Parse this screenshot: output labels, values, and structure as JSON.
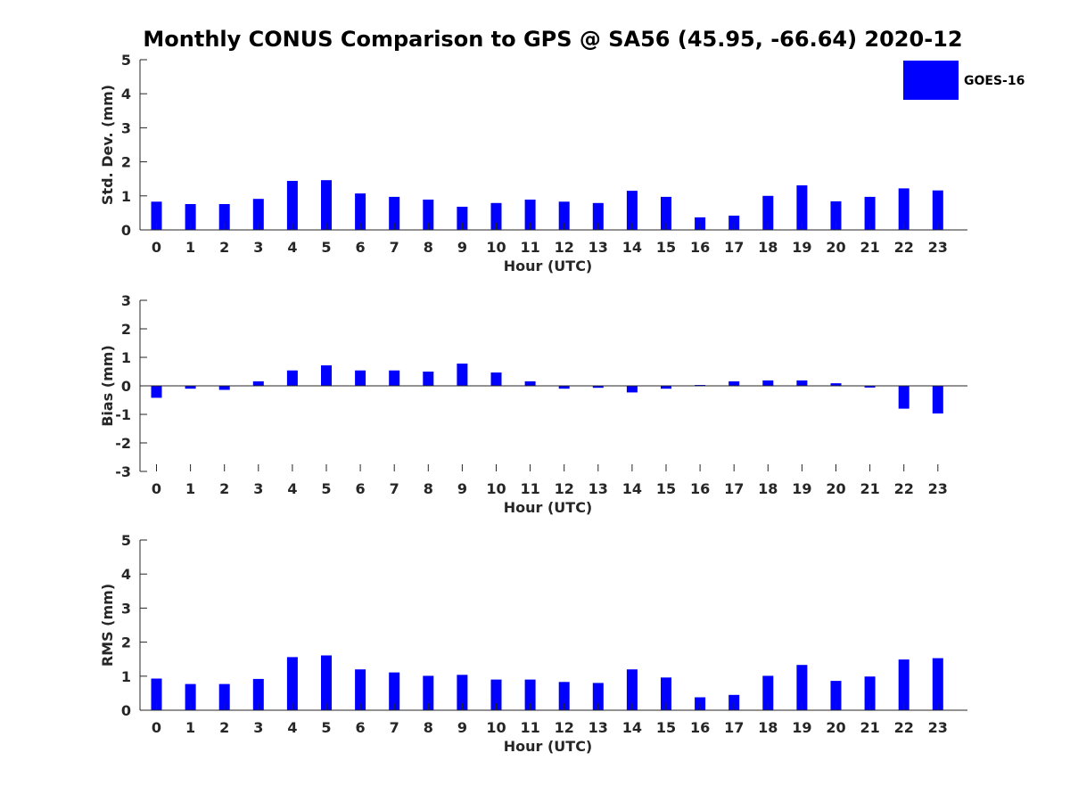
{
  "title": "Monthly CONUS Comparison to GPS @ SA56 (45.95, -66.64) 2020-12",
  "legend": {
    "label": "GOES-16",
    "color": "#0000ff"
  },
  "chart_data": [
    {
      "type": "bar",
      "panel": "std-dev",
      "xlabel": "Hour (UTC)",
      "ylabel": "Std. Dev. (mm)",
      "ylim": [
        0,
        5
      ],
      "yticks": [
        0,
        1,
        2,
        3,
        4,
        5
      ],
      "categories": [
        "0",
        "1",
        "2",
        "3",
        "4",
        "5",
        "6",
        "7",
        "8",
        "9",
        "10",
        "11",
        "12",
        "13",
        "14",
        "15",
        "16",
        "17",
        "18",
        "19",
        "20",
        "21",
        "22",
        "23"
      ],
      "series": [
        {
          "name": "GOES-16",
          "color": "#0000ff",
          "values": [
            0.83,
            0.76,
            0.76,
            0.91,
            1.44,
            1.46,
            1.07,
            0.97,
            0.89,
            0.68,
            0.79,
            0.89,
            0.83,
            0.79,
            1.15,
            0.97,
            0.37,
            0.42,
            1.0,
            1.31,
            0.84,
            0.97,
            1.22,
            1.16
          ]
        }
      ],
      "legend_position": "top-right"
    },
    {
      "type": "bar",
      "panel": "bias",
      "xlabel": "Hour (UTC)",
      "ylabel": "Bias (mm)",
      "ylim": [
        -3,
        3
      ],
      "yticks": [
        -3,
        -2,
        -1,
        0,
        1,
        2,
        3
      ],
      "categories": [
        "0",
        "1",
        "2",
        "3",
        "4",
        "5",
        "6",
        "7",
        "8",
        "9",
        "10",
        "11",
        "12",
        "13",
        "14",
        "15",
        "16",
        "17",
        "18",
        "19",
        "20",
        "21",
        "22",
        "23"
      ],
      "series": [
        {
          "name": "GOES-16",
          "color": "#0000ff",
          "values": [
            -0.42,
            -0.1,
            -0.14,
            0.16,
            0.54,
            0.72,
            0.54,
            0.54,
            0.5,
            0.78,
            0.47,
            0.16,
            -0.1,
            -0.07,
            -0.23,
            -0.1,
            0.03,
            0.16,
            0.19,
            0.19,
            0.09,
            -0.06,
            -0.8,
            -0.97
          ]
        }
      ]
    },
    {
      "type": "bar",
      "panel": "rms",
      "xlabel": "Hour (UTC)",
      "ylabel": "RMS (mm)",
      "ylim": [
        0,
        5
      ],
      "yticks": [
        0,
        1,
        2,
        3,
        4,
        5
      ],
      "categories": [
        "0",
        "1",
        "2",
        "3",
        "4",
        "5",
        "6",
        "7",
        "8",
        "9",
        "10",
        "11",
        "12",
        "13",
        "14",
        "15",
        "16",
        "17",
        "18",
        "19",
        "20",
        "21",
        "22",
        "23"
      ],
      "series": [
        {
          "name": "GOES-16",
          "color": "#0000ff",
          "values": [
            0.93,
            0.77,
            0.77,
            0.92,
            1.56,
            1.61,
            1.2,
            1.11,
            1.01,
            1.04,
            0.9,
            0.9,
            0.83,
            0.8,
            1.2,
            0.96,
            0.38,
            0.45,
            1.01,
            1.33,
            0.86,
            0.99,
            1.49,
            1.53
          ]
        }
      ]
    }
  ]
}
